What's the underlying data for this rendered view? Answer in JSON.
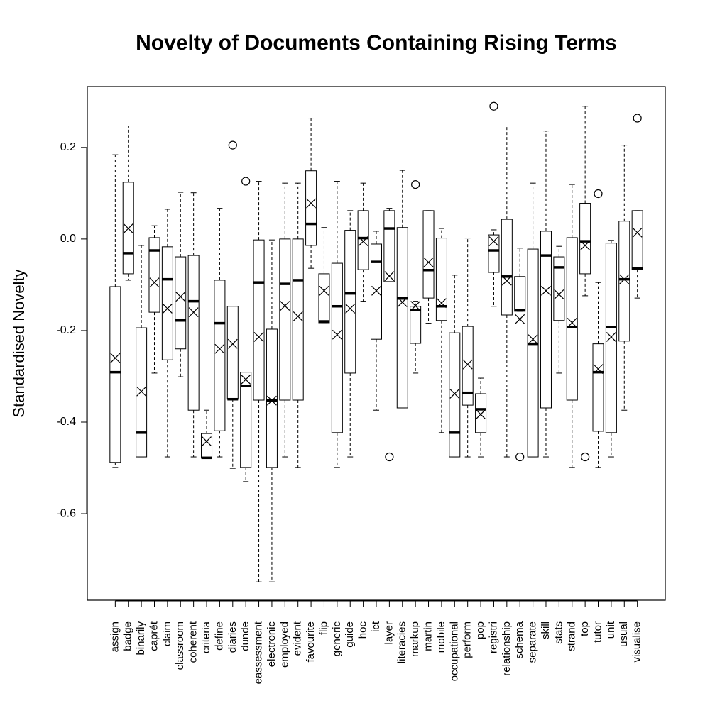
{
  "chart_data": {
    "type": "box",
    "title": "Novelty of Documents Containing Rising Terms",
    "y_label": "Standardised Novelty",
    "categories": [
      "assign",
      "badge",
      "binarily",
      "caprét",
      "claim",
      "classroom",
      "coherent",
      "criteria",
      "define",
      "diaries",
      "dunde",
      "eassessment",
      "electronic",
      "employed",
      "evident",
      "favourite",
      "flip",
      "generic",
      "guide",
      "hoc",
      "ict",
      "layer",
      "literacies",
      "markup",
      "martin",
      "mobile",
      "occupational",
      "perform",
      "pop",
      "registri",
      "relationship",
      "schema",
      "separate",
      "skill",
      "stats",
      "strand",
      "top",
      "tutor",
      "unit",
      "usual",
      "visualise"
    ],
    "whisker_low": [
      -0.499,
      -0.09,
      -0.476,
      -0.293,
      -0.476,
      -0.301,
      -0.476,
      -0.478,
      -0.476,
      -0.501,
      -0.53,
      -0.749,
      -0.749,
      -0.476,
      -0.499,
      -0.064,
      -0.183,
      -0.499,
      -0.476,
      -0.136,
      -0.374,
      -0.093,
      -0.369,
      -0.293,
      -0.184,
      -0.423,
      -0.476,
      -0.476,
      -0.476,
      -0.147,
      -0.476,
      -0.158,
      -0.476,
      -0.476,
      -0.293,
      -0.499,
      -0.124,
      -0.499,
      -0.476,
      -0.374,
      -0.129
    ],
    "q1": [
      -0.488,
      -0.076,
      -0.476,
      -0.16,
      -0.264,
      -0.24,
      -0.374,
      -0.478,
      -0.419,
      -0.35,
      -0.499,
      -0.352,
      -0.499,
      -0.352,
      -0.352,
      -0.014,
      -0.183,
      -0.423,
      -0.293,
      -0.067,
      -0.219,
      -0.093,
      -0.369,
      -0.228,
      -0.129,
      -0.178,
      -0.476,
      -0.363,
      -0.423,
      -0.073,
      -0.166,
      -0.158,
      -0.476,
      -0.369,
      -0.178,
      -0.352,
      -0.076,
      -0.42,
      -0.423,
      -0.223,
      -0.067
    ],
    "median": [
      -0.291,
      -0.031,
      -0.423,
      -0.025,
      -0.088,
      -0.178,
      -0.136,
      -0.478,
      -0.184,
      -0.35,
      -0.321,
      -0.095,
      -0.353,
      -0.098,
      -0.09,
      0.033,
      -0.18,
      -0.147,
      -0.119,
      0.002,
      -0.05,
      0.023,
      -0.13,
      -0.155,
      -0.068,
      -0.147,
      -0.423,
      -0.336,
      -0.372,
      -0.025,
      -0.082,
      -0.155,
      -0.229,
      -0.036,
      -0.062,
      -0.192,
      -0.005,
      -0.291,
      -0.192,
      -0.088,
      -0.064
    ],
    "q3": [
      -0.104,
      0.124,
      -0.194,
      0.003,
      -0.017,
      -0.039,
      -0.036,
      -0.425,
      -0.09,
      -0.147,
      -0.291,
      -0.002,
      -0.197,
      0.0,
      0.0,
      0.149,
      -0.076,
      -0.053,
      0.019,
      0.062,
      -0.011,
      0.062,
      0.025,
      -0.147,
      0.062,
      0.002,
      -0.205,
      -0.191,
      -0.338,
      0.009,
      0.043,
      -0.082,
      -0.022,
      0.017,
      -0.039,
      0.003,
      0.078,
      -0.229,
      -0.009,
      0.039,
      0.062
    ],
    "whisker_high": [
      0.184,
      0.247,
      -0.014,
      0.029,
      0.065,
      0.102,
      0.101,
      -0.374,
      0.067,
      -0.147,
      -0.291,
      0.126,
      -0.002,
      0.122,
      0.122,
      0.264,
      0.025,
      0.126,
      0.062,
      0.122,
      0.017,
      0.067,
      0.15,
      -0.136,
      0.062,
      0.023,
      -0.079,
      0.002,
      -0.304,
      0.02,
      0.247,
      -0.02,
      0.122,
      0.236,
      -0.016,
      0.119,
      0.29,
      -0.095,
      -0.003,
      0.205,
      0.062
    ],
    "mean": [
      -0.26,
      0.023,
      -0.333,
      -0.095,
      -0.152,
      -0.126,
      -0.16,
      -0.442,
      -0.24,
      -0.229,
      -0.307,
      -0.214,
      -0.353,
      -0.146,
      -0.169,
      0.078,
      -0.113,
      -0.209,
      -0.152,
      -0.005,
      -0.113,
      -0.081,
      -0.138,
      -0.146,
      -0.051,
      -0.14,
      -0.338,
      -0.274,
      -0.383,
      -0.005,
      -0.091,
      -0.175,
      -0.219,
      -0.113,
      -0.121,
      -0.183,
      -0.014,
      -0.284,
      -0.214,
      -0.088,
      0.014
    ],
    "outliers": [
      [],
      [],
      [],
      [],
      [],
      [],
      [],
      [],
      [],
      [
        0.205
      ],
      [
        0.126
      ],
      [],
      [],
      [],
      [],
      [],
      [],
      [],
      [],
      [],
      [],
      [
        -0.476
      ],
      [],
      [
        0.119
      ],
      [],
      [],
      [],
      [],
      [],
      [
        0.29
      ],
      [],
      [
        -0.476
      ],
      [],
      [],
      [],
      [],
      [
        -0.476
      ],
      [
        0.099
      ],
      [],
      [],
      [
        0.264
      ]
    ],
    "ylim": [
      -0.789,
      0.333
    ],
    "yticks": [
      -0.6,
      -0.4,
      -0.2,
      {
        "value": 0,
        "label": "0.0"
      },
      0.2
    ],
    "color": "#000000"
  }
}
